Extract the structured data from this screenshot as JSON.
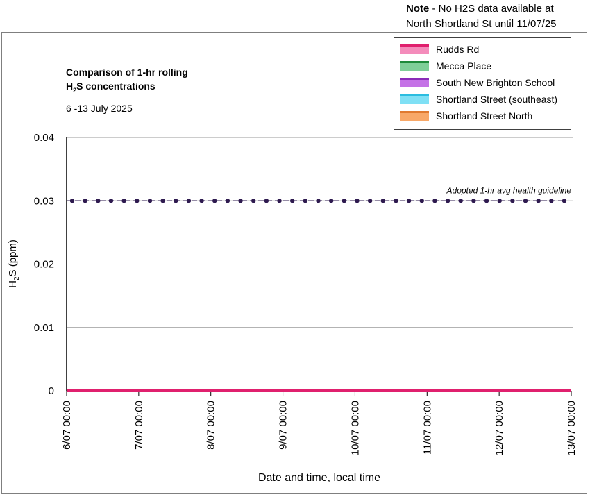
{
  "note": {
    "bold": "Note",
    "line1": " - No H2S data available at",
    "line2": "North Shortland St until 11/07/25"
  },
  "title": {
    "line1": "Comparison of 1-hr rolling",
    "line2_pre": "H",
    "line2_sub": "2",
    "line2_post": "S concentrations",
    "subtitle": "6 -13 July 2025"
  },
  "ylabel": {
    "pre": "H",
    "sub": "2",
    "post": "S (ppm)"
  },
  "xlabel": "Date and time, local time",
  "legend": [
    {
      "label": "Rudds Rd",
      "fill": "#f48cbb",
      "edge": "#e0206e"
    },
    {
      "label": "Mecca Place",
      "fill": "#7fcf98",
      "edge": "#1e8a3a"
    },
    {
      "label": "South New Brighton School",
      "fill": "#c472e6",
      "edge": "#8a2cb8"
    },
    {
      "label": "Shortland Street (southeast)",
      "fill": "#7fe0f5",
      "edge": "#2bbde0"
    },
    {
      "label": "Shortland Street North",
      "fill": "#f8a868",
      "edge": "#e07a30"
    }
  ],
  "chart_data": {
    "type": "line",
    "ylim": [
      0,
      0.04
    ],
    "yticks": [
      "0",
      "0.01",
      "0.02",
      "0.03",
      "0.04"
    ],
    "ytick_values": [
      0,
      0.01,
      0.02,
      0.03,
      0.04
    ],
    "x_categories": [
      "6/07 00:00",
      "7/07 00:00",
      "8/07 00:00",
      "9/07 00:00",
      "10/07 00:00",
      "11/07 00:00",
      "12/07 00:00",
      "13/07 00:00"
    ],
    "grid": true,
    "series": [
      {
        "name": "Rudds Rd",
        "color": "#e0206e",
        "values": [
          0,
          0,
          0,
          0,
          0,
          0,
          0,
          0
        ]
      }
    ],
    "guideline": {
      "label": "Adopted 1-hr avg health guideline",
      "value": 0.03,
      "color": "#2e1a4f",
      "marker_count": 39
    }
  }
}
